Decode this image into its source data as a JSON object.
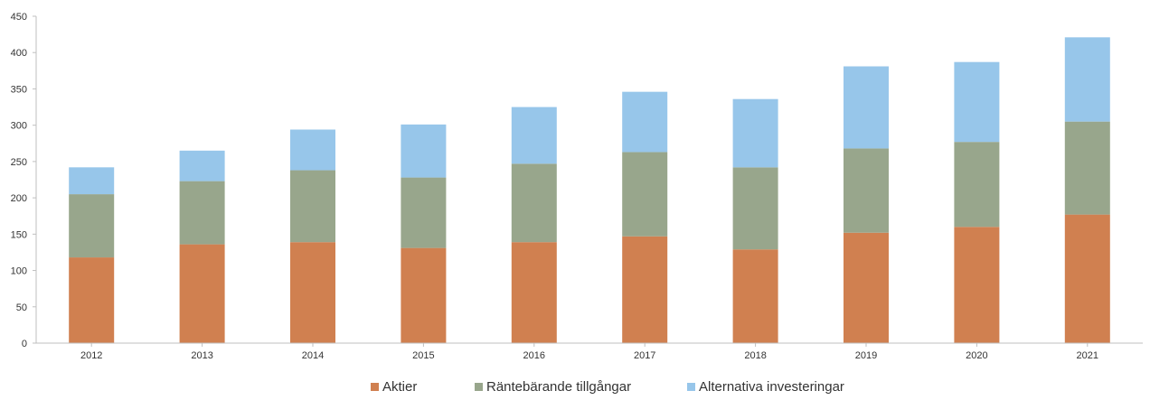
{
  "chart_data": {
    "type": "bar",
    "stacked": true,
    "title": "",
    "xlabel": "",
    "ylabel": "",
    "categories": [
      "2012",
      "2013",
      "2014",
      "2015",
      "2016",
      "2017",
      "2018",
      "2019",
      "2020",
      "2021"
    ],
    "ylim": [
      0,
      450
    ],
    "yticks": [
      0,
      50,
      100,
      150,
      200,
      250,
      300,
      350,
      400,
      450
    ],
    "grid": false,
    "legend_position": "bottom",
    "series": [
      {
        "name": "Aktier",
        "color": "#d08050",
        "values": [
          118,
          136,
          139,
          131,
          139,
          147,
          129,
          152,
          160,
          177
        ]
      },
      {
        "name": "Räntebärande tillgångar",
        "color": "#98a68c",
        "values": [
          87,
          87,
          99,
          97,
          108,
          116,
          113,
          116,
          117,
          128
        ]
      },
      {
        "name": "Alternativa investeringar",
        "color": "#97c6ea",
        "values": [
          37,
          42,
          56,
          73,
          78,
          83,
          94,
          113,
          110,
          116
        ]
      }
    ]
  }
}
